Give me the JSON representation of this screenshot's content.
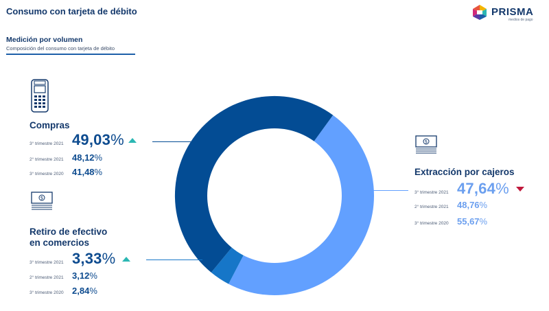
{
  "header": {
    "title": "Consumo con tarjeta de débito",
    "brand_name": "PRISMA",
    "brand_tagline": "medios de pago"
  },
  "section": {
    "title": "Medición por volumen",
    "caption": "Composición del consumo con tarjeta de débito"
  },
  "colors": {
    "compras": "#034c94",
    "retiro": "#1676c8",
    "extraccion": "#62a0ff",
    "arrow_up": "#2bb7b3",
    "arrow_down": "#c0193c"
  },
  "icons": {
    "compras": "pos-terminal-icon",
    "retiro": "cash-stack-icon",
    "extraccion": "cash-stack-icon",
    "trend_up": "triangle-up-icon",
    "trend_down": "triangle-down-icon"
  },
  "categories": {
    "compras": {
      "label": "Compras",
      "current": {
        "period": "3° trimestre 2021",
        "value": "49,03",
        "unit": "%",
        "trend": "up"
      },
      "prev_q": {
        "period": "2° trimestre 2021",
        "value": "48,12",
        "unit": "%"
      },
      "prev_y": {
        "period": "3° trimestre 2020",
        "value": "41,48",
        "unit": "%"
      }
    },
    "retiro": {
      "label_line1": "Retiro de efectivo",
      "label_line2": "en comercios",
      "current": {
        "period": "3° trimestre 2021",
        "value": "3,33",
        "unit": "%",
        "trend": "up"
      },
      "prev_q": {
        "period": "2° trimestre 2021",
        "value": "3,12",
        "unit": "%"
      },
      "prev_y": {
        "period": "3° trimestre 2020",
        "value": "2,84",
        "unit": "%"
      }
    },
    "extraccion": {
      "label": "Extracción por cajeros",
      "current": {
        "period": "3° trimestre 2021",
        "value": "47,64",
        "unit": "%",
        "trend": "down"
      },
      "prev_q": {
        "period": "2° trimestre 2021",
        "value": "48,76",
        "unit": "%"
      },
      "prev_y": {
        "period": "3° trimestre 2020",
        "value": "55,67",
        "unit": "%"
      }
    }
  },
  "chart_data": {
    "type": "pie",
    "variant": "donut",
    "categories": [
      "Extracción por cajeros",
      "Retiro de efectivo en comercios",
      "Compras"
    ],
    "values": [
      47.64,
      3.33,
      49.03
    ],
    "colors": [
      "#62a0ff",
      "#1676c8",
      "#034c94"
    ],
    "start_angle_deg": 36,
    "direction": "clockwise",
    "legend": "none"
  }
}
